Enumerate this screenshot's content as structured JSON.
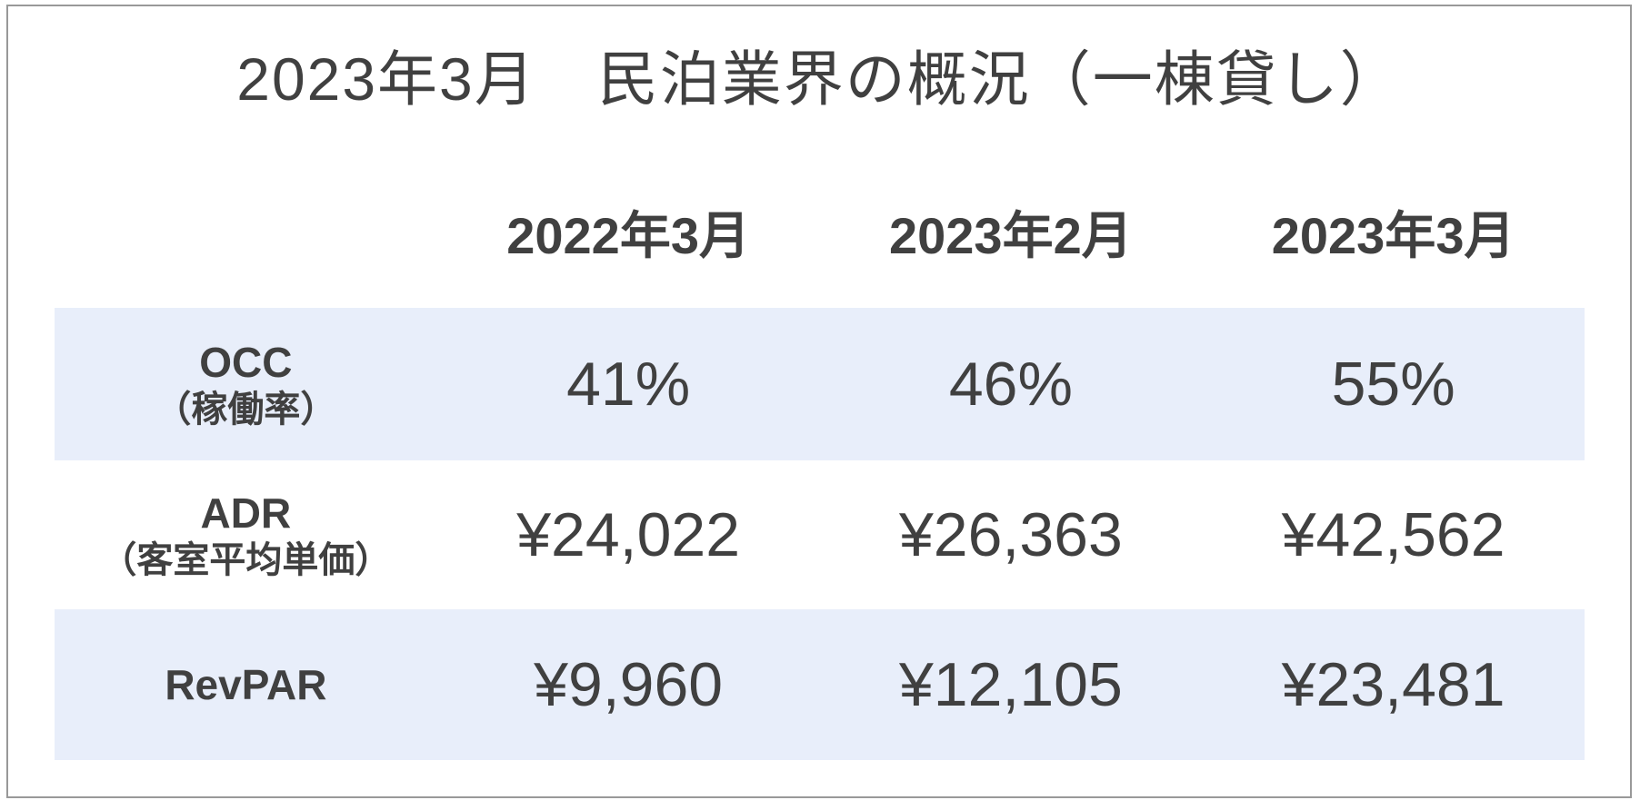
{
  "title": "2023年3月　民泊業界の概況（一棟貸し）",
  "table": {
    "columns": [
      "2022年3月",
      "2023年2月",
      "2023年3月"
    ],
    "rows": [
      {
        "metric": "OCC",
        "metric_sub": "（稼働率）",
        "values": [
          "41%",
          "46%",
          "55%"
        ]
      },
      {
        "metric": "ADR",
        "metric_sub": "（客室平均単価）",
        "values": [
          "¥24,022",
          "¥26,363",
          "¥42,562"
        ]
      },
      {
        "metric": "RevPAR",
        "metric_sub": "",
        "values": [
          "¥9,960",
          "¥12,105",
          "¥23,481"
        ]
      }
    ]
  },
  "chart_data": {
    "type": "table",
    "title": "2023年3月　民泊業界の概況（一棟貸し）",
    "categories": [
      "2022年3月",
      "2023年2月",
      "2023年3月"
    ],
    "series": [
      {
        "name": "OCC（稼働率）",
        "values": [
          "41%",
          "46%",
          "55%"
        ]
      },
      {
        "name": "ADR（客室平均単価）",
        "values": [
          24022,
          26363,
          42562
        ]
      },
      {
        "name": "RevPAR",
        "values": [
          9960,
          12105,
          23481
        ]
      }
    ]
  },
  "colors": {
    "row_band": "#e8eefa",
    "text": "#404040",
    "frame_border": "#999999"
  }
}
